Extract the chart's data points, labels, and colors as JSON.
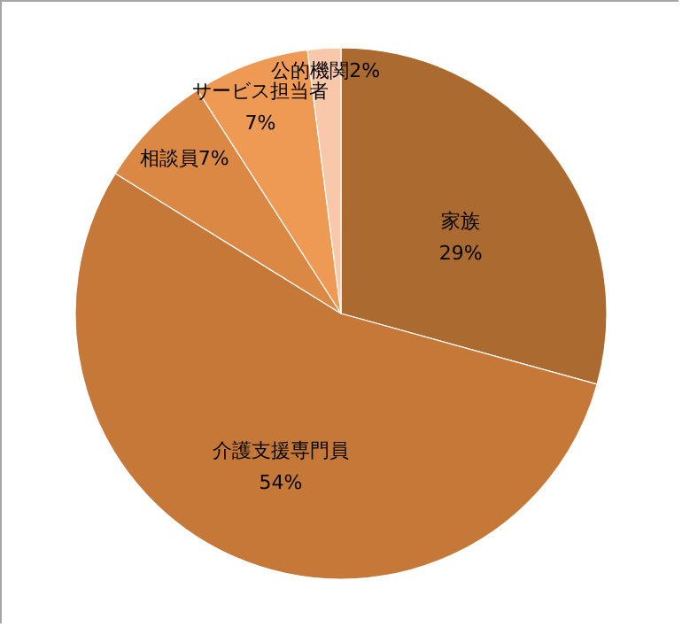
{
  "chart_data": {
    "type": "pie",
    "categories": [
      "家族",
      "介護支援専門員",
      "相談員",
      "サービス担当者",
      "公的機関"
    ],
    "values": [
      29,
      54,
      7,
      7,
      2
    ],
    "value_labels": [
      "29%",
      "54%",
      "7%",
      "7%",
      "2%"
    ],
    "colors": [
      "#ab6a2f",
      "#c57838",
      "#da8843",
      "#ee9a55",
      "#f9c8aa"
    ]
  }
}
